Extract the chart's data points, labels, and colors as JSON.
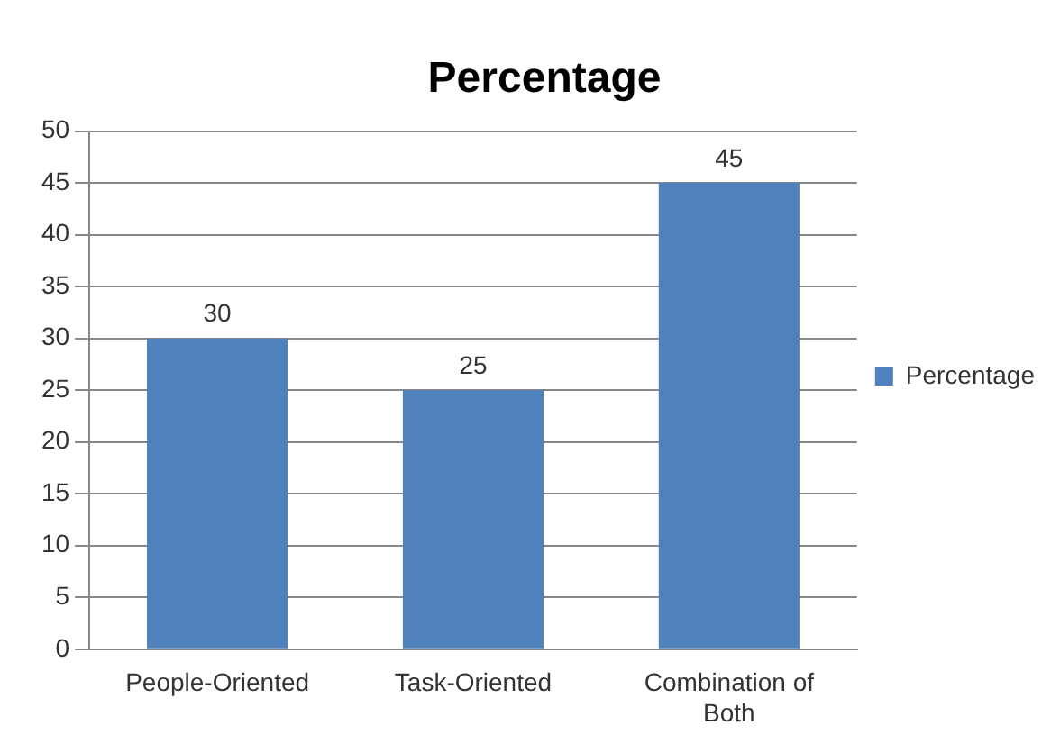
{
  "chart_data": {
    "type": "bar",
    "title": "Percentage",
    "categories": [
      "People-Oriented",
      "Task-Oriented",
      "Combination of Both"
    ],
    "series": [
      {
        "name": "Percentage",
        "color": "#4f81bd",
        "values": [
          30,
          25,
          45
        ]
      }
    ],
    "ylim": [
      0,
      50
    ],
    "yticks": [
      0,
      5,
      10,
      15,
      20,
      25,
      30,
      35,
      40,
      45,
      50
    ],
    "grid": "y",
    "legend": "right",
    "data_labels": true
  }
}
